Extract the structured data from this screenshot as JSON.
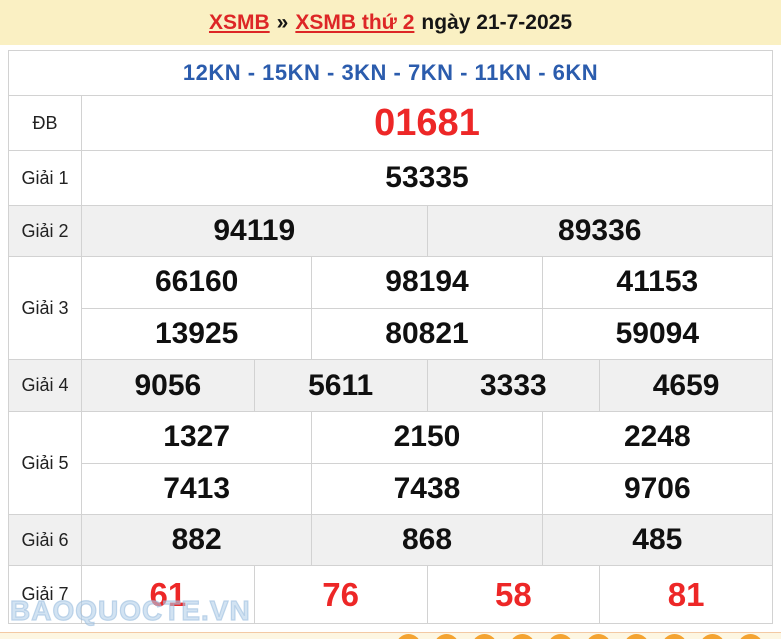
{
  "header": {
    "link_home": "XSMB",
    "separator": "»",
    "link_day": "XSMB thứ 2",
    "date_text": "ngày 21-7-2025"
  },
  "subtitle": "12KN - 15KN - 3KN - 7KN - 11KN - 6KN",
  "results": {
    "db": {
      "label": "ĐB",
      "value": "01681"
    },
    "g1": {
      "label": "Giải 1",
      "value": "53335"
    },
    "g2": {
      "label": "Giải 2",
      "values": [
        "94119",
        "89336"
      ]
    },
    "g3": {
      "label": "Giải 3",
      "rows": [
        [
          "66160",
          "98194",
          "41153"
        ],
        [
          "13925",
          "80821",
          "59094"
        ]
      ]
    },
    "g4": {
      "label": "Giải 4",
      "values": [
        "9056",
        "5611",
        "3333",
        "4659"
      ]
    },
    "g5": {
      "label": "Giải 5",
      "rows": [
        [
          "1327",
          "2150",
          "2248"
        ],
        [
          "7413",
          "7438",
          "9706"
        ]
      ]
    },
    "g6": {
      "label": "Giải 6",
      "values": [
        "882",
        "868",
        "485"
      ]
    },
    "g7": {
      "label": "Giải 7",
      "values": [
        "61",
        "76",
        "58",
        "81"
      ]
    }
  },
  "watermark": "BAOQUOCTE.VN",
  "colors": {
    "banner_bg": "#faf0c3",
    "link_red": "#dd2626",
    "number_red": "#ed2727",
    "subtitle_blue": "#2b5cad",
    "alt_row_gray": "#f0f0f0",
    "ball_orange": "#f4a331",
    "border_gray": "#d2d2d2",
    "strip_bg": "#fdf6e2"
  }
}
